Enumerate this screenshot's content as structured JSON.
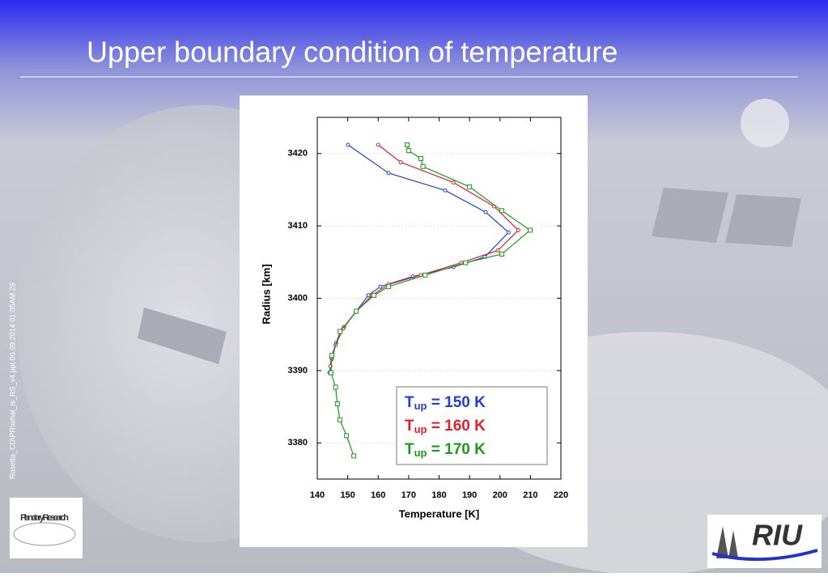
{
  "slide": {
    "title": "Upper boundary condition of temperature",
    "side_note": "Rosetta_CD\\PR\\what_is_RS_v4.ppt  06.09.2014 01:05AM  29",
    "logo_left": "Planetary Research",
    "logo_right": "RIU"
  },
  "chart_data": {
    "type": "line",
    "x_label": "Temperature [K]",
    "y_label": "Radius [km]",
    "xlim": [
      140,
      220
    ],
    "xticks": [
      140,
      150,
      160,
      170,
      180,
      190,
      200,
      210,
      220
    ],
    "ylim": [
      3375,
      3425
    ],
    "yticks": [
      3380,
      3390,
      3400,
      3410,
      3420
    ],
    "grid": true,
    "legend": "lower right",
    "series": [
      {
        "name": "Tup = 150 K",
        "color": "#1f3fd8",
        "marker": "circle",
        "x": [
          150.1,
          163.4,
          182,
          195.3,
          202.8,
          195,
          184.7,
          171.4,
          160.7,
          156.8,
          152.8,
          148.8,
          146.2,
          144.8,
          144
        ],
        "y": [
          3421.2,
          3417.3,
          3414.9,
          3411.9,
          3409.1,
          3405.7,
          3404.3,
          3403,
          3401.6,
          3400.4,
          3398.2,
          3396,
          3393.8,
          3391.6,
          3389.7
        ]
      },
      {
        "name": "Tup = 160 K",
        "color": "#e0202c",
        "marker": "circle",
        "x": [
          160,
          167.4,
          184.7,
          198,
          206,
          199.3,
          187.3,
          174,
          163.4,
          158,
          152.6,
          148.5,
          146,
          144.6,
          144.3
        ],
        "y": [
          3421.2,
          3418.8,
          3416,
          3412.7,
          3409.4,
          3406.6,
          3404.9,
          3403.2,
          3401.9,
          3400.4,
          3398.1,
          3395.8,
          3393.5,
          3391.8,
          3390.6
        ]
      },
      {
        "name": "Tup = 170 K",
        "color": "#1a9a1a",
        "marker": "square",
        "x": [
          169.5,
          170,
          174,
          174.7,
          190,
          200.6,
          209.9,
          200.6,
          188.7,
          175.4,
          163.4,
          158.6,
          152.8,
          147.5,
          144.8,
          144.5,
          146,
          146.6,
          147.4,
          149.6,
          152
        ],
        "y": [
          3421.2,
          3420.4,
          3419.3,
          3418.2,
          3415.4,
          3412.1,
          3409.4,
          3406.1,
          3404.9,
          3403.2,
          3401.6,
          3400.4,
          3398.2,
          3395.4,
          3392.1,
          3389.7,
          3387.7,
          3385.4,
          3383.2,
          3381,
          3378.2
        ]
      }
    ]
  }
}
